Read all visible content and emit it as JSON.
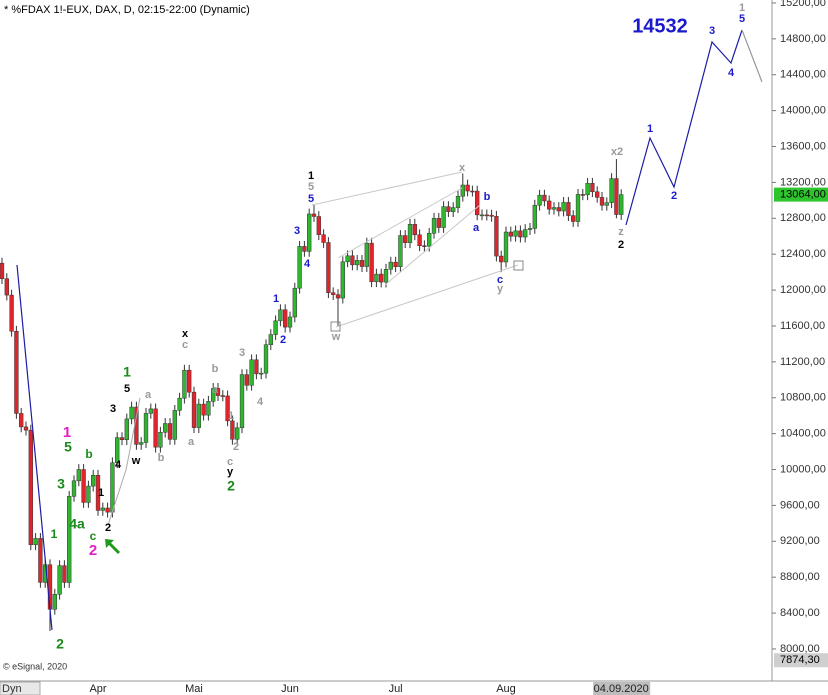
{
  "chart_data": {
    "type": "candlestick",
    "title": "* %FDAX 1!-EUX, DAX, D, 02:15-22:00 (Dynamic)",
    "credit": "© eSignal, 2020",
    "axis_mode": "Dyn",
    "up_color": "#2fb52f",
    "down_color": "#e0242b",
    "ylim": [
      7654,
      15233
    ],
    "yticks": [
      {
        "value": 8000,
        "label": "8000,00"
      },
      {
        "value": 8400,
        "label": "8400,00"
      },
      {
        "value": 8800,
        "label": "8800,00"
      },
      {
        "value": 9200,
        "label": "9200,00"
      },
      {
        "value": 9600,
        "label": "9600,00"
      },
      {
        "value": 10000,
        "label": "10000,00"
      },
      {
        "value": 10400,
        "label": "10400,00"
      },
      {
        "value": 10800,
        "label": "10800,00"
      },
      {
        "value": 11200,
        "label": "11200,00"
      },
      {
        "value": 11600,
        "label": "11600,00"
      },
      {
        "value": 12000,
        "label": "12000,00"
      },
      {
        "value": 12400,
        "label": "12400,00"
      },
      {
        "value": 12800,
        "label": "12800,00"
      },
      {
        "value": 13200,
        "label": "13200,00"
      },
      {
        "value": 13600,
        "label": "13600,00"
      },
      {
        "value": 14000,
        "label": "14000,00"
      },
      {
        "value": 14400,
        "label": "14400,00"
      },
      {
        "value": 14800,
        "label": "14800,00"
      },
      {
        "value": 15200,
        "label": "15200,00"
      }
    ],
    "price_markers": [
      {
        "value": 13064,
        "label": "13064,00",
        "color": "#2ec42e"
      },
      {
        "value": 7874.3,
        "label": "7874,30",
        "color": "#cfcfcf"
      }
    ],
    "categories": [
      null,
      null,
      null,
      null,
      null,
      null,
      null,
      null,
      null,
      null,
      null,
      null,
      null,
      null,
      null,
      null,
      null,
      null,
      null,
      null,
      "Apr",
      null,
      null,
      null,
      null,
      null,
      null,
      null,
      null,
      null,
      null,
      null,
      null,
      null,
      null,
      null,
      null,
      null,
      null,
      null,
      "Mai",
      null,
      null,
      null,
      null,
      null,
      null,
      null,
      null,
      null,
      null,
      null,
      null,
      null,
      null,
      null,
      null,
      null,
      null,
      null,
      "Jun",
      null,
      null,
      null,
      null,
      null,
      null,
      null,
      null,
      null,
      null,
      null,
      null,
      null,
      null,
      null,
      null,
      null,
      null,
      null,
      null,
      null,
      "Jul",
      null,
      null,
      null,
      null,
      null,
      null,
      null,
      null,
      null,
      null,
      null,
      null,
      null,
      null,
      null,
      null,
      null,
      null,
      null,
      null,
      null,
      null,
      "Aug",
      null,
      null,
      null,
      null,
      null,
      null,
      null,
      null,
      null,
      null,
      null,
      null,
      null,
      null,
      null,
      null,
      null,
      null,
      null,
      null,
      null,
      null,
      null,
      "04.09.2020"
    ],
    "open": [
      12300,
      12127,
      11944,
      11541,
      10625,
      10475,
      10439,
      9161,
      9232,
      8742,
      8939,
      8442,
      8610,
      8929,
      8741,
      9701,
      9874,
      10000,
      9633,
      9815,
      9936,
      9544,
      9571,
      9525,
      10075,
      10356,
      10332,
      10564,
      10696,
      10280,
      10301,
      10626,
      10676,
      10249,
      10415,
      10513,
      10336,
      10659,
      10795,
      11107,
      10862,
      10467,
      10729,
      10606,
      10760,
      10904,
      10824,
      10820,
      10542,
      10337,
      10465,
      11058,
      10939,
      11223,
      11066,
      11074,
      11391,
      11504,
      11657,
      11781,
      11587,
      11700,
      12021,
      12487,
      12431,
      12848,
      12820,
      12617,
      12530,
      11970,
      11949,
      11911,
      12315,
      12382,
      12281,
      12331,
      12262,
      12523,
      12093,
      12178,
      12089,
      12232,
      12311,
      12260,
      12608,
      12528,
      12733,
      12616,
      12494,
      12489,
      12633,
      12800,
      12697,
      12930,
      12874,
      12919,
      13046,
      13171,
      13104,
      13103,
      12838,
      12838,
      12835,
      12822,
      12379,
      12313,
      12647,
      12600,
      12660,
      12591,
      12674,
      12687,
      12946,
      13058,
      12993,
      12901,
      12920,
      12881,
      12977,
      12830,
      12764,
      13066,
      13062,
      13190,
      13096,
      13033,
      12945,
      12974,
      13243,
      12842
    ],
    "high": [
      12360,
      12187,
      12004,
      11601,
      10685,
      10535,
      10499,
      9292,
      9292,
      8999,
      8999,
      8670,
      8989,
      8989,
      9761,
      9934,
      10060,
      10060,
      9875,
      9996,
      9996,
      9631,
      9631,
      10135,
      10416,
      10416,
      10624,
      10756,
      10756,
      10361,
      10686,
      10736,
      10736,
      10475,
      10573,
      10573,
      10719,
      10855,
      11167,
      11167,
      10922,
      10789,
      10789,
      10820,
      10964,
      10964,
      10884,
      10880,
      10602,
      10525,
      11118,
      11118,
      11283,
      11283,
      11134,
      11451,
      11564,
      11717,
      11841,
      11841,
      11760,
      12081,
      12547,
      12547,
      12908,
      12950,
      12880,
      12677,
      12590,
      12030,
      12009,
      12375,
      12442,
      12442,
      12391,
      12391,
      12583,
      12583,
      12238,
      12238,
      12292,
      12371,
      12371,
      12668,
      12668,
      12793,
      12793,
      12676,
      12554,
      12693,
      12860,
      12860,
      12990,
      12990,
      12979,
      13106,
      13300,
      13231,
      13164,
      13163,
      12898,
      12898,
      12895,
      12882,
      12439,
      12707,
      12707,
      12720,
      12720,
      12734,
      12747,
      13006,
      13118,
      13118,
      13053,
      12980,
      12980,
      13037,
      13037,
      12890,
      13126,
      13126,
      13250,
      13250,
      13156,
      13093,
      13034,
      13303,
      13460,
      13124
    ],
    "low": [
      12067,
      11884,
      11481,
      10565,
      10415,
      10379,
      9101,
      9101,
      8682,
      8682,
      8200,
      8382,
      8550,
      8681,
      8681,
      9641,
      9814,
      9573,
      9573,
      9755,
      9484,
      9484,
      9465,
      9465,
      10015,
      10272,
      10272,
      10504,
      10220,
      10220,
      10241,
      10566,
      10189,
      10189,
      10355,
      10276,
      10276,
      10599,
      10735,
      10802,
      10407,
      10407,
      10546,
      10546,
      10700,
      10764,
      10760,
      10482,
      10277,
      10277,
      10405,
      10879,
      10879,
      11006,
      11006,
      11014,
      11331,
      11444,
      11597,
      11527,
      11527,
      11640,
      11961,
      12371,
      12371,
      12760,
      12557,
      12470,
      11910,
      11889,
      11600,
      11851,
      12255,
      12221,
      12221,
      12202,
      12202,
      12033,
      12033,
      12029,
      12029,
      12172,
      12200,
      12200,
      12468,
      12468,
      12556,
      12434,
      12429,
      12429,
      12573,
      12637,
      12637,
      12814,
      12814,
      12859,
      12986,
      13044,
      13043,
      12778,
      12778,
      12775,
      12762,
      12319,
      12200,
      12253,
      12540,
      12540,
      12531,
      12531,
      12614,
      12627,
      12886,
      12933,
      12841,
      12841,
      12821,
      12821,
      12770,
      12704,
      12704,
      13002,
      13002,
      13036,
      12973,
      12885,
      12885,
      12914,
      12800,
      12782
    ],
    "close": [
      12127,
      11944,
      11541,
      10625,
      10475,
      10439,
      9161,
      9232,
      8742,
      8939,
      8442,
      8610,
      8929,
      8741,
      9701,
      9874,
      10000,
      9633,
      9815,
      9936,
      9544,
      9571,
      9525,
      10075,
      10356,
      10332,
      10564,
      10696,
      10280,
      10301,
      10626,
      10676,
      10249,
      10415,
      10513,
      10336,
      10659,
      10795,
      11107,
      10862,
      10467,
      10729,
      10606,
      10760,
      10904,
      10824,
      10820,
      10542,
      10337,
      10465,
      11058,
      10939,
      11223,
      11066,
      11074,
      11391,
      11504,
      11657,
      11781,
      11587,
      11700,
      12021,
      12487,
      12431,
      12848,
      12820,
      12617,
      12530,
      11970,
      11949,
      11911,
      12315,
      12382,
      12281,
      12331,
      12262,
      12523,
      12093,
      12178,
      12089,
      12232,
      12311,
      12260,
      12608,
      12528,
      12733,
      12616,
      12494,
      12489,
      12633,
      12800,
      12697,
      12930,
      12874,
      12919,
      13046,
      13171,
      13104,
      13103,
      12838,
      12838,
      12835,
      12822,
      12379,
      12313,
      12647,
      12600,
      12660,
      12591,
      12674,
      12687,
      12946,
      13058,
      12993,
      12901,
      12920,
      12881,
      12977,
      12830,
      12764,
      13066,
      13062,
      13190,
      13096,
      13033,
      12945,
      12974,
      13243,
      12842,
      13064
    ],
    "annotations": [
      "14532",
      "3",
      "4",
      "1",
      "5",
      "1",
      "2",
      "x2",
      "z",
      "2",
      "x",
      "b",
      "a",
      "c",
      "y",
      "w",
      "1",
      "5",
      "5",
      "3",
      "4",
      "1",
      "2",
      "3",
      "4",
      "1",
      "2",
      "c",
      "y",
      "2",
      "x",
      "c",
      "b",
      "a",
      "a",
      "a",
      "b",
      "1",
      "5",
      "3",
      "4",
      "w",
      "1",
      "5",
      "b",
      "3",
      "1",
      "4a",
      "2",
      "c",
      "2",
      "1",
      "2"
    ]
  }
}
